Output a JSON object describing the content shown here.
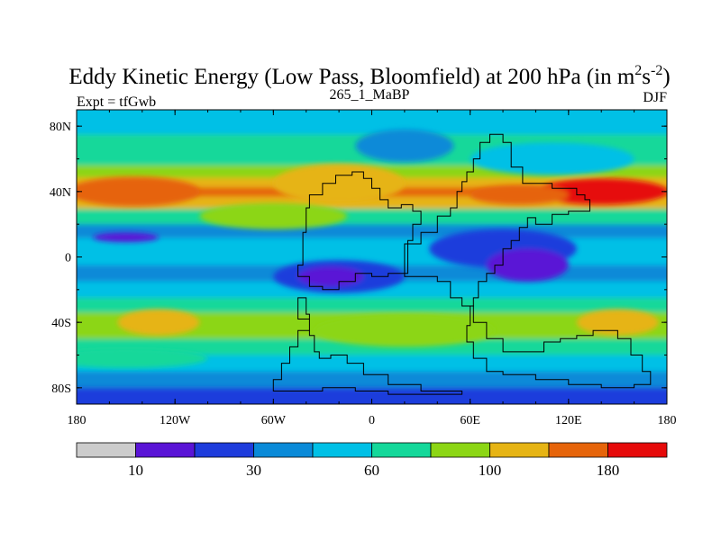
{
  "chart_data": {
    "type": "heatmap",
    "title": {
      "main": "Eddy Kinetic Energy (Low Pass, Bloomfield) at 200 hPa (in m",
      "unit_sup1": "2",
      "unit_mid": "s",
      "unit_sup2": "-2",
      "close": ")"
    },
    "subtitle_left": "Expt = tfGwb",
    "subtitle_center": "265_1_MaBP",
    "subtitle_right": "DJF",
    "x_ticks": [
      {
        "value": -180,
        "label": "180"
      },
      {
        "value": -120,
        "label": "120W"
      },
      {
        "value": -60,
        "label": "60W"
      },
      {
        "value": 0,
        "label": "0"
      },
      {
        "value": 60,
        "label": "60E"
      },
      {
        "value": 120,
        "label": "120E"
      },
      {
        "value": 180,
        "label": "180"
      }
    ],
    "y_ticks": [
      {
        "value": 80,
        "label": "80N"
      },
      {
        "value": 40,
        "label": "40N"
      },
      {
        "value": 0,
        "label": "0"
      },
      {
        "value": -40,
        "label": "40S"
      },
      {
        "value": -80,
        "label": "80S"
      }
    ],
    "xlim": [
      -180,
      180
    ],
    "ylim": [
      -90,
      90
    ],
    "colorbar": {
      "colors": [
        "#cccccc",
        "#5a14d6",
        "#1e3cdc",
        "#0a8ad8",
        "#00c0e6",
        "#14d89a",
        "#8cd614",
        "#e6b414",
        "#e6640a",
        "#e60a0a"
      ],
      "labels": [
        {
          "boundary": 1,
          "label": "10"
        },
        {
          "boundary": 3,
          "label": "30"
        },
        {
          "boundary": 5,
          "label": "60"
        },
        {
          "boundary": 7,
          "label": "100"
        },
        {
          "boundary": 9,
          "label": "180"
        }
      ]
    },
    "field_bands_by_latitude": [
      {
        "lat": 88,
        "level": 4
      },
      {
        "lat": 80,
        "level": 4
      },
      {
        "lat": 70,
        "level": 5
      },
      {
        "lat": 60,
        "level": 5
      },
      {
        "lat": 52,
        "level": 6
      },
      {
        "lat": 45,
        "level": 7
      },
      {
        "lat": 40,
        "level": 8
      },
      {
        "lat": 34,
        "level": 7
      },
      {
        "lat": 25,
        "level": 5
      },
      {
        "lat": 15,
        "level": 3
      },
      {
        "lat": 8,
        "level": 4
      },
      {
        "lat": 0,
        "level": 4
      },
      {
        "lat": -10,
        "level": 3
      },
      {
        "lat": -20,
        "level": 4
      },
      {
        "lat": -30,
        "level": 5
      },
      {
        "lat": -38,
        "level": 6
      },
      {
        "lat": -45,
        "level": 6
      },
      {
        "lat": -55,
        "level": 5
      },
      {
        "lat": -65,
        "level": 4
      },
      {
        "lat": -75,
        "level": 3
      },
      {
        "lat": -85,
        "level": 2
      }
    ],
    "field_anomalies": [
      {
        "lon": -160,
        "lat": 40,
        "rlon": 25,
        "rlat": 6,
        "level": 9
      },
      {
        "lon": -145,
        "lat": 40,
        "rlon": 40,
        "rlat": 9,
        "level": 8
      },
      {
        "lon": 140,
        "lat": 40,
        "rlon": 40,
        "rlat": 8,
        "level": 9
      },
      {
        "lon": 90,
        "lat": 38,
        "rlon": 30,
        "rlat": 6,
        "level": 8
      },
      {
        "lon": -20,
        "lat": 45,
        "rlon": 40,
        "rlat": 12,
        "level": 7
      },
      {
        "lon": 80,
        "lat": 5,
        "rlon": 45,
        "rlat": 12,
        "level": 2
      },
      {
        "lon": 95,
        "lat": -5,
        "rlon": 25,
        "rlat": 10,
        "level": 1
      },
      {
        "lon": -20,
        "lat": -12,
        "rlon": 40,
        "rlat": 10,
        "level": 2
      },
      {
        "lon": -25,
        "lat": -12,
        "rlon": 20,
        "rlat": 6,
        "level": 1
      },
      {
        "lon": -150,
        "lat": 12,
        "rlon": 20,
        "rlat": 3,
        "level": 1
      },
      {
        "lon": -130,
        "lat": -40,
        "rlon": 25,
        "rlat": 8,
        "level": 7
      },
      {
        "lon": 150,
        "lat": -40,
        "rlon": 25,
        "rlat": 8,
        "level": 7
      },
      {
        "lon": 20,
        "lat": -45,
        "rlon": 55,
        "rlat": 10,
        "level": 6
      },
      {
        "lon": -150,
        "lat": -62,
        "rlon": 50,
        "rlat": 6,
        "level": 5
      },
      {
        "lon": 110,
        "lat": 60,
        "rlon": 50,
        "rlat": 10,
        "level": 4
      },
      {
        "lon": -60,
        "lat": 25,
        "rlon": 45,
        "rlat": 8,
        "level": 6
      },
      {
        "lon": 20,
        "lat": 68,
        "rlon": 30,
        "rlat": 10,
        "level": 3
      }
    ],
    "landmass_outlines": [
      {
        "name": "north-continent",
        "points": [
          [
            20,
            -10
          ],
          [
            22,
            8
          ],
          [
            30,
            15
          ],
          [
            40,
            25
          ],
          [
            48,
            30
          ],
          [
            52,
            40
          ],
          [
            55,
            46
          ],
          [
            58,
            52
          ],
          [
            62,
            60
          ],
          [
            66,
            70
          ],
          [
            72,
            75
          ],
          [
            78,
            75
          ],
          [
            80,
            70
          ],
          [
            85,
            55
          ],
          [
            92,
            45
          ],
          [
            110,
            42
          ],
          [
            125,
            38
          ],
          [
            130,
            35
          ],
          [
            133,
            28
          ],
          [
            120,
            26
          ],
          [
            110,
            20
          ],
          [
            100,
            24
          ],
          [
            95,
            18
          ],
          [
            90,
            10
          ],
          [
            85,
            5
          ],
          [
            80,
            -5
          ],
          [
            75,
            -10
          ],
          [
            70,
            -15
          ],
          [
            65,
            -25
          ],
          [
            62,
            -30
          ],
          [
            55,
            -25
          ],
          [
            48,
            -15
          ],
          [
            40,
            -12
          ],
          [
            30,
            -12
          ],
          [
            20,
            -10
          ]
        ]
      },
      {
        "name": "west-continent",
        "points": [
          [
            -42,
            15
          ],
          [
            -40,
            30
          ],
          [
            -38,
            38
          ],
          [
            -30,
            45
          ],
          [
            -22,
            50
          ],
          [
            -12,
            52
          ],
          [
            -5,
            48
          ],
          [
            0,
            42
          ],
          [
            5,
            35
          ],
          [
            10,
            30
          ],
          [
            18,
            32
          ],
          [
            25,
            28
          ],
          [
            30,
            20
          ],
          [
            25,
            10
          ],
          [
            22,
            8
          ],
          [
            20,
            -10
          ],
          [
            10,
            -12
          ],
          [
            0,
            -10
          ],
          [
            -10,
            -15
          ],
          [
            -20,
            -20
          ],
          [
            -30,
            -18
          ],
          [
            -38,
            -12
          ],
          [
            -45,
            -5
          ],
          [
            -42,
            15
          ]
        ]
      },
      {
        "name": "south-continent",
        "points": [
          [
            60,
            -30
          ],
          [
            62,
            -40
          ],
          [
            70,
            -50
          ],
          [
            80,
            -58
          ],
          [
            95,
            -58
          ],
          [
            105,
            -52
          ],
          [
            115,
            -50
          ],
          [
            125,
            -48
          ],
          [
            135,
            -45
          ],
          [
            150,
            -50
          ],
          [
            158,
            -60
          ],
          [
            165,
            -70
          ],
          [
            170,
            -78
          ],
          [
            160,
            -80
          ],
          [
            140,
            -78
          ],
          [
            120,
            -75
          ],
          [
            100,
            -72
          ],
          [
            80,
            -70
          ],
          [
            70,
            -62
          ],
          [
            62,
            -52
          ],
          [
            58,
            -42
          ],
          [
            60,
            -30
          ]
        ]
      },
      {
        "name": "southwest-continent",
        "points": [
          [
            -45,
            -25
          ],
          [
            -40,
            -35
          ],
          [
            -38,
            -45
          ],
          [
            -45,
            -55
          ],
          [
            -50,
            -65
          ],
          [
            -55,
            -75
          ],
          [
            -60,
            -82
          ],
          [
            -45,
            -82
          ],
          [
            -30,
            -80
          ],
          [
            -10,
            -82
          ],
          [
            10,
            -84
          ],
          [
            40,
            -84
          ],
          [
            55,
            -82
          ],
          [
            30,
            -78
          ],
          [
            10,
            -72
          ],
          [
            -5,
            -65
          ],
          [
            -15,
            -60
          ],
          [
            -25,
            -62
          ],
          [
            -32,
            -58
          ],
          [
            -35,
            -48
          ],
          [
            -38,
            -38
          ],
          [
            -45,
            -25
          ]
        ]
      }
    ]
  }
}
